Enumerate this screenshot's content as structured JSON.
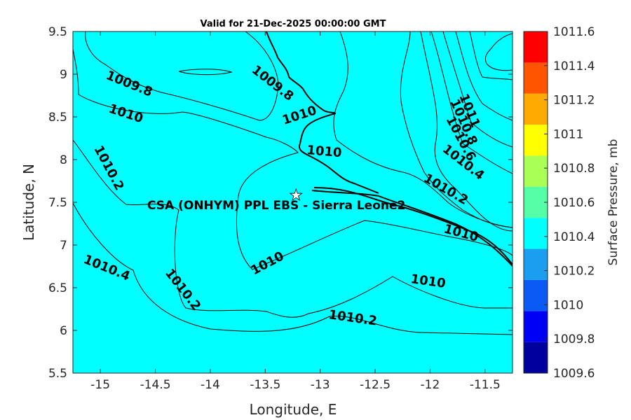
{
  "title": "Valid for 21-Dec-2025 00:00:00 GMT",
  "axes": {
    "xlabel": "Longitude, E",
    "ylabel": "Latitude, N",
    "xlim": [
      -15.25,
      -11.25
    ],
    "ylim": [
      5.5,
      9.5
    ],
    "xticks": [
      "-15",
      "-14.5",
      "-14",
      "-13.5",
      "-13",
      "-12.5",
      "-12",
      "-11.5"
    ],
    "yticks": [
      "9.5",
      "9",
      "8.5",
      "8",
      "7.5",
      "7",
      "6.5",
      "6",
      "5.5"
    ]
  },
  "colorbar": {
    "label": "Surface Pressure, mb",
    "ticks": [
      "1011.6",
      "1011.4",
      "1011.2",
      "1011",
      "1010.8",
      "1010.6",
      "1010.4",
      "1010.2",
      "1010",
      "1009.8",
      "1009.6"
    ],
    "colors": [
      "#00009f",
      "#0000f5",
      "#0a5af5",
      "#1a9ff0",
      "#00ffff",
      "#55ffa8",
      "#aaff55",
      "#ffff00",
      "#ffaa00",
      "#ff5500",
      "#ff0000"
    ]
  },
  "site": {
    "label": "CSA (ONHYM) PPL EBS  - Sierra Leone2",
    "lon": -13.22,
    "lat": 7.59
  },
  "contour_labels": [
    "1009.8",
    "1009.8",
    "1010",
    "1010",
    "1010",
    "1010",
    "1010",
    "1010",
    "1010.2",
    "1010.2",
    "1010.2",
    "1010.2",
    "1010.4",
    "1010.4",
    "1010.6",
    "1010.8",
    "1011"
  ]
}
